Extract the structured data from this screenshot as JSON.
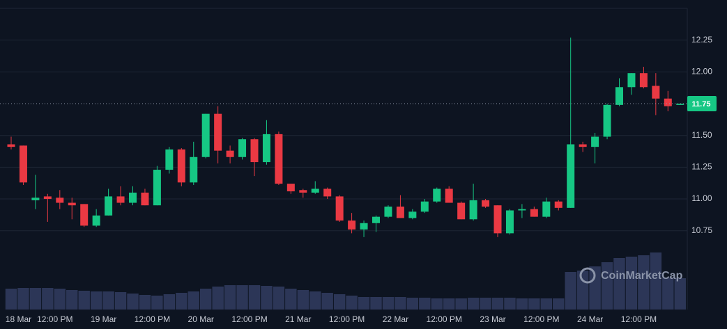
{
  "chart_data": {
    "type": "candlestick",
    "watermark": "CoinMarketCap",
    "categories": [
      null,
      null,
      null,
      null,
      null,
      null,
      null,
      null,
      null,
      null,
      null,
      null,
      null,
      null,
      null,
      null,
      null,
      null,
      null,
      null,
      null,
      null,
      null,
      null,
      null,
      null,
      null,
      null,
      null,
      null,
      null,
      null,
      null,
      null,
      null,
      null,
      null,
      null,
      null,
      null,
      null,
      null,
      null,
      null,
      null,
      null,
      null,
      null,
      null,
      null,
      null,
      null,
      null,
      null,
      null,
      null
    ],
    "open": [
      11.43,
      11.42,
      10.99,
      11.02,
      11.01,
      10.97,
      10.96,
      10.79,
      10.87,
      11.02,
      10.97,
      11.05,
      10.95,
      11.23,
      11.39,
      11.13,
      11.33,
      11.67,
      11.38,
      11.33,
      11.47,
      11.29,
      11.51,
      11.12,
      11.07,
      11.05,
      11.08,
      11.02,
      10.83,
      10.76,
      10.81,
      10.86,
      10.94,
      10.85,
      10.9,
      10.98,
      11.08,
      10.97,
      10.84,
      10.99,
      10.95,
      10.73,
      10.91,
      10.92,
      10.86,
      10.98,
      10.93,
      11.43,
      11.41,
      11.49,
      11.74,
      11.88,
      11.99,
      11.89,
      11.79,
      11.74
    ],
    "high": [
      11.49,
      11.42,
      11.19,
      11.04,
      11.07,
      11.01,
      10.96,
      10.92,
      11.08,
      11.1,
      11.1,
      11.08,
      11.26,
      11.41,
      11.4,
      11.45,
      11.67,
      11.73,
      11.42,
      11.48,
      11.48,
      11.62,
      11.53,
      11.12,
      11.08,
      11.14,
      11.09,
      11.03,
      10.89,
      10.83,
      10.87,
      10.95,
      11.03,
      10.92,
      11.0,
      11.09,
      11.1,
      10.98,
      11.12,
      11.0,
      10.95,
      10.92,
      10.96,
      10.94,
      11.01,
      10.99,
      12.27,
      11.45,
      11.52,
      11.75,
      11.95,
      11.99,
      12.04,
      11.99,
      11.85,
      11.75
    ],
    "low": [
      11.39,
      11.11,
      10.92,
      10.82,
      10.92,
      10.84,
      10.78,
      10.78,
      10.87,
      10.95,
      10.95,
      10.95,
      10.95,
      11.2,
      11.1,
      11.11,
      11.32,
      11.28,
      11.28,
      11.31,
      11.18,
      11.27,
      11.11,
      11.04,
      11.01,
      11.04,
      11.0,
      10.82,
      10.73,
      10.7,
      10.74,
      10.85,
      10.85,
      10.84,
      10.89,
      10.97,
      10.97,
      10.84,
      10.83,
      10.93,
      10.7,
      10.72,
      10.85,
      10.86,
      10.85,
      10.91,
      10.93,
      11.37,
      11.28,
      11.47,
      11.73,
      11.82,
      11.87,
      11.66,
      11.69,
      11.74
    ],
    "close": [
      11.41,
      11.13,
      11.01,
      11.0,
      10.97,
      10.95,
      10.79,
      10.87,
      11.02,
      10.97,
      11.05,
      10.95,
      11.23,
      11.39,
      11.13,
      11.33,
      11.67,
      11.38,
      11.33,
      11.47,
      11.29,
      11.51,
      11.12,
      11.06,
      11.05,
      11.08,
      11.02,
      10.83,
      10.76,
      10.81,
      10.86,
      10.94,
      10.85,
      10.9,
      10.98,
      11.08,
      10.97,
      10.84,
      10.99,
      10.94,
      10.73,
      10.91,
      10.92,
      10.86,
      10.98,
      10.93,
      11.43,
      11.41,
      11.49,
      11.74,
      11.88,
      11.99,
      11.88,
      11.79,
      11.73,
      11.75
    ],
    "volume": [
      30,
      31,
      31,
      31,
      30,
      28,
      27,
      26,
      26,
      25,
      23,
      21,
      20,
      22,
      24,
      26,
      30,
      33,
      35,
      35,
      35,
      34,
      33,
      30,
      28,
      26,
      24,
      22,
      20,
      18,
      18,
      18,
      18,
      17,
      17,
      16,
      16,
      16,
      17,
      17,
      17,
      17,
      16,
      16,
      16,
      16,
      54,
      56,
      62,
      68,
      74,
      76,
      78,
      82,
      46,
      45
    ],
    "up_color": "#16c784",
    "down_color": "#ea3943",
    "volume_color": "#2c3657",
    "ylim": [
      10.13,
      12.5
    ],
    "vlim": [
      0,
      100
    ],
    "yticks": [
      10.75,
      {
        "value": 11.0,
        "label": "11.00"
      },
      11.25,
      {
        "value": 11.5,
        "label": "11.50"
      },
      {
        "value": 12.0,
        "label": "12.00"
      },
      12.25
    ],
    "xticks": [
      {
        "value": 0.6,
        "label": "18 Mar"
      },
      {
        "value": 3.6,
        "label": "12:00 PM"
      },
      {
        "value": 7.6,
        "label": "19 Mar"
      },
      {
        "value": 11.6,
        "label": "12:00 PM"
      },
      {
        "value": 15.6,
        "label": "20 Mar"
      },
      {
        "value": 19.6,
        "label": "12:00 PM"
      },
      {
        "value": 23.6,
        "label": "21 Mar"
      },
      {
        "value": 27.6,
        "label": "12:00 PM"
      },
      {
        "value": 31.6,
        "label": "22 Mar"
      },
      {
        "value": 35.6,
        "label": "12:00 PM"
      },
      {
        "value": 39.6,
        "label": "23 Mar"
      },
      {
        "value": 43.6,
        "label": "12:00 PM"
      },
      {
        "value": 47.6,
        "label": "24 Mar"
      },
      {
        "value": 51.6,
        "label": "12:00 PM"
      }
    ],
    "current_price": 11.75,
    "grid": true
  }
}
